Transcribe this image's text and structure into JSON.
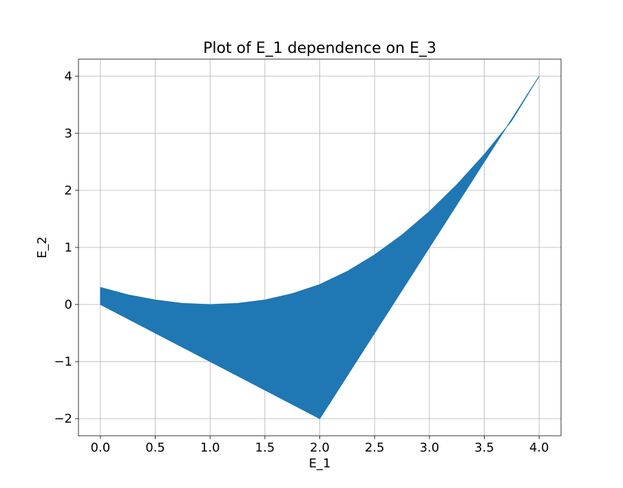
{
  "chart_data": {
    "type": "area",
    "title": "Plot of E_1 dependence on E_3",
    "xlabel": "E_1",
    "ylabel": "E_2",
    "xlim": [
      -0.2,
      4.2
    ],
    "ylim": [
      -2.3,
      4.3
    ],
    "grid": true,
    "x_ticks": [
      0.0,
      0.5,
      1.0,
      1.5,
      2.0,
      2.5,
      3.0,
      3.5,
      4.0
    ],
    "x_tick_labels": [
      "0.0",
      "0.5",
      "1.0",
      "1.5",
      "2.0",
      "2.5",
      "3.0",
      "3.5",
      "4.0"
    ],
    "y_ticks": [
      -2,
      -1,
      0,
      1,
      2,
      3,
      4
    ],
    "y_tick_labels": [
      "−2",
      "−1",
      "0",
      "1",
      "2",
      "3",
      "4"
    ],
    "series": [
      {
        "color": "#1f77b4",
        "upper_boundary": {
          "x": [
            0.0,
            0.25,
            0.5,
            0.75,
            1.0,
            1.25,
            1.5,
            1.75,
            2.0,
            2.25,
            2.5,
            2.75,
            3.0,
            3.25,
            3.5,
            3.75,
            4.0
          ],
          "y": [
            0.3,
            0.17,
            0.08,
            0.02,
            0.0,
            0.02,
            0.08,
            0.19,
            0.35,
            0.58,
            0.87,
            1.22,
            1.63,
            2.1,
            2.63,
            3.22,
            4.0
          ]
        },
        "lower_boundary": {
          "x": [
            0.0,
            0.5,
            1.0,
            1.5,
            2.0,
            2.5,
            3.0,
            3.5,
            4.0
          ],
          "y": [
            0.0,
            -0.5,
            -1.0,
            -1.5,
            -2.0,
            -0.5,
            1.0,
            2.5,
            4.0
          ]
        }
      }
    ]
  }
}
